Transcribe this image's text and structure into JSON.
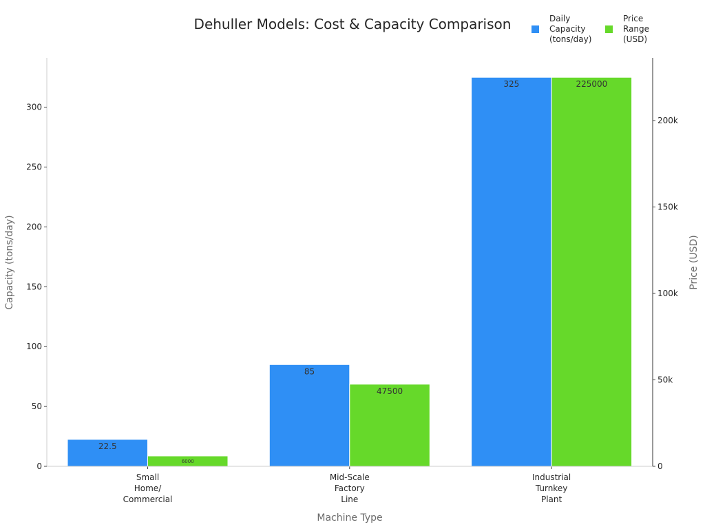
{
  "chart_data": {
    "type": "bar",
    "title": "Dehuller Models: Cost & Capacity Comparison",
    "xlabel": "Machine Type",
    "categories": [
      [
        "Small",
        "Home/",
        "Commercial"
      ],
      [
        "Mid-Scale",
        "Factory",
        "Line"
      ],
      [
        "Industrial",
        "Turnkey",
        "Plant"
      ]
    ],
    "series": [
      {
        "name": "Daily Capacity (tons/day)",
        "legend_lines": [
          "Daily",
          "Capacity",
          "(tons/day)"
        ],
        "axis": "left",
        "color": "#2f8ff5",
        "values": [
          22.5,
          85,
          325
        ],
        "labels": [
          "22.5",
          "85",
          "325"
        ]
      },
      {
        "name": "Price Range (USD)",
        "legend_lines": [
          "Price",
          "Range",
          "(USD)"
        ],
        "axis": "right",
        "color": "#66d92a",
        "values": [
          6000,
          47500,
          225000
        ],
        "labels": [
          "6000",
          "47500",
          "225000"
        ]
      }
    ],
    "y_left": {
      "label": "Capacity (tons/day)",
      "ylim": [
        0,
        341.25
      ],
      "ticks": [
        0,
        50,
        100,
        150,
        200,
        250,
        300
      ],
      "tick_labels": [
        "0",
        "50",
        "100",
        "150",
        "200",
        "250",
        "300"
      ]
    },
    "y_right": {
      "label": "Price (USD)",
      "ylim": [
        0,
        236250
      ],
      "ticks": [
        0,
        50000,
        100000,
        150000,
        200000
      ],
      "tick_labels": [
        "0",
        "50k",
        "100k",
        "150k",
        "200k"
      ]
    },
    "legend_position": "top-right",
    "grid": false
  }
}
